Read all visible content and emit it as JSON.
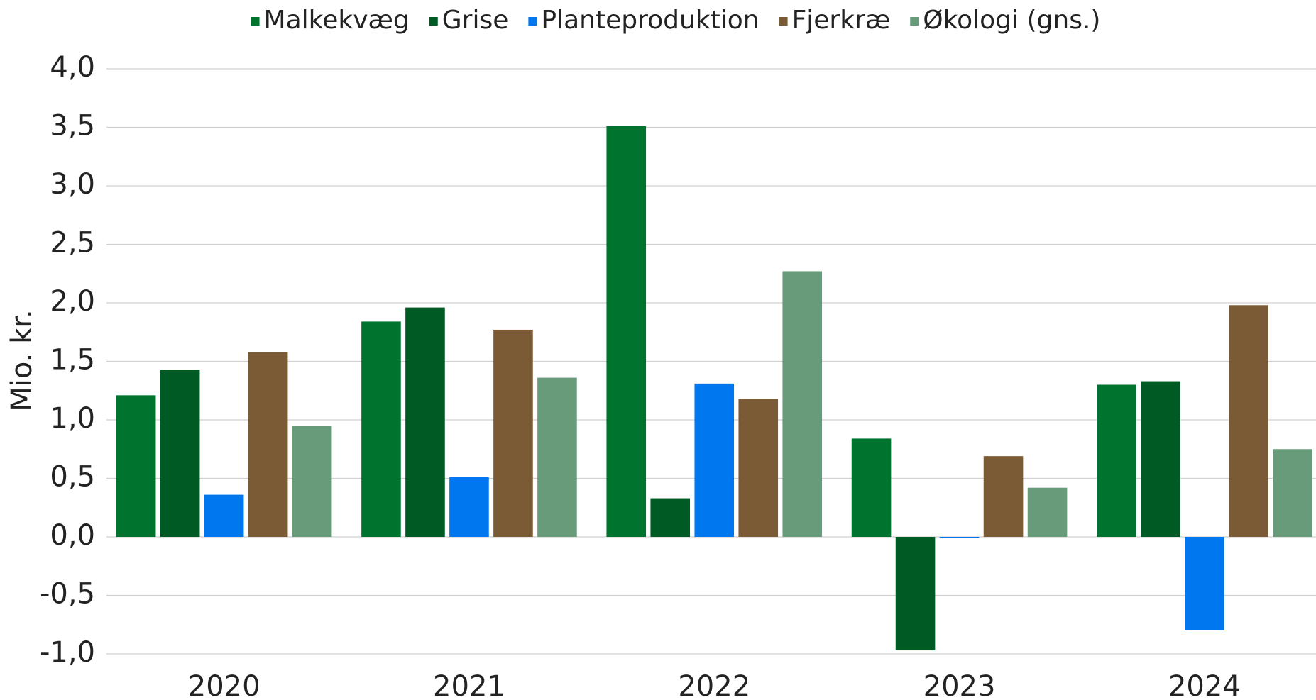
{
  "chart_data": {
    "type": "bar",
    "y_label": "Mio. kr.",
    "categories": [
      "2020",
      "2021",
      "2022",
      "2023",
      "2024"
    ],
    "series": [
      {
        "name": "Malkekvæg",
        "color": "#00732f",
        "values": [
          1.21,
          1.84,
          3.51,
          0.84,
          1.3
        ]
      },
      {
        "name": "Grise",
        "color": "#005a24",
        "values": [
          1.43,
          1.96,
          0.33,
          -0.97,
          1.33
        ]
      },
      {
        "name": "Planteproduktion",
        "color": "#0077ee",
        "values": [
          0.36,
          0.51,
          1.31,
          -0.01,
          -0.8
        ]
      },
      {
        "name": "Fjerkræ",
        "color": "#7b5a36",
        "values": [
          1.58,
          1.77,
          1.18,
          0.69,
          1.98
        ]
      },
      {
        "name": "Økologi (gns.)",
        "color": "#679b7a",
        "values": [
          0.95,
          1.36,
          2.27,
          0.42,
          0.75
        ]
      }
    ],
    "ylim": [
      -1,
      4
    ],
    "yticks": [
      {
        "value": -1,
        "label": "-1,0"
      },
      {
        "value": -0.5,
        "label": "-0,5"
      },
      {
        "value": 0,
        "label": "0,0"
      },
      {
        "value": 0.5,
        "label": "0,5"
      },
      {
        "value": 1,
        "label": "1,0"
      },
      {
        "value": 1.5,
        "label": "1,5"
      },
      {
        "value": 2,
        "label": "2,0"
      },
      {
        "value": 2.5,
        "label": "2,5"
      },
      {
        "value": 3,
        "label": "3,0"
      },
      {
        "value": 3.5,
        "label": "3,5"
      },
      {
        "value": 4,
        "label": "4,0"
      }
    ],
    "grid": true,
    "legend": "top"
  }
}
